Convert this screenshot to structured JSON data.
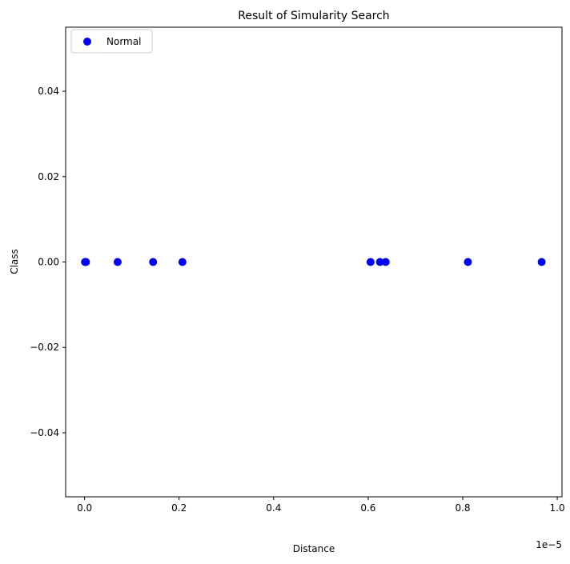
{
  "chart_data": {
    "type": "scatter",
    "title": "Result of Simularity Search",
    "xlabel": "Distance",
    "ylabel": "Class",
    "x_offset_label": "1e−5",
    "x_scale": 1e-05,
    "xlim": [
      -4e-07,
      1.01e-05
    ],
    "ylim": [
      -0.055,
      0.055
    ],
    "x_ticks": [
      0,
      2e-06,
      4e-06,
      6e-06,
      8e-06,
      1e-05
    ],
    "x_tick_labels": [
      "0.0",
      "0.2",
      "0.4",
      "0.6",
      "0.8",
      "1.0"
    ],
    "y_ticks": [
      -0.04,
      -0.02,
      0.0,
      0.02,
      0.04
    ],
    "y_tick_labels": [
      "−0.04",
      "−0.02",
      "0.00",
      "0.02",
      "0.04"
    ],
    "grid": false,
    "legend_position": "top-left",
    "series": [
      {
        "name": "Normal",
        "color": "#0000ff",
        "x": [
          1e-08,
          3e-08,
          7e-07,
          1.45e-06,
          2.07e-06,
          6.05e-06,
          6.25e-06,
          6.37e-06,
          8.11e-06,
          9.67e-06
        ],
        "y": [
          0,
          0,
          0,
          0,
          0,
          0,
          0,
          0,
          0,
          0
        ]
      }
    ]
  }
}
